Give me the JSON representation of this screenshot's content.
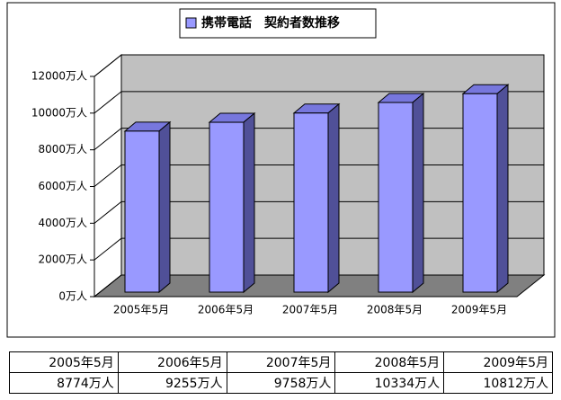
{
  "chart_data": {
    "type": "bar3d",
    "categories": [
      "2005年5月",
      "2006年5月",
      "2007年5月",
      "2008年5月",
      "2009年5月"
    ],
    "series": [
      {
        "name": "携帯電話　契約者数推移",
        "color": "#9999ff",
        "values": [
          8774,
          9255,
          9758,
          10334,
          10812
        ],
        "value_labels": [
          "8774万人",
          "9255万人",
          "9758万人",
          "10334万人",
          "10812万人"
        ]
      }
    ],
    "ylim": [
      0,
      12000
    ],
    "yticks": [
      {
        "value": 0,
        "label": "0万人"
      },
      {
        "value": 2000,
        "label": "2000万人"
      },
      {
        "value": 4000,
        "label": "4000万人"
      },
      {
        "value": 6000,
        "label": "6000万人"
      },
      {
        "value": 8000,
        "label": "8000万人"
      },
      {
        "value": 10000,
        "label": "10000万人"
      },
      {
        "value": 12000,
        "label": "12000万人"
      }
    ],
    "grid": true
  }
}
